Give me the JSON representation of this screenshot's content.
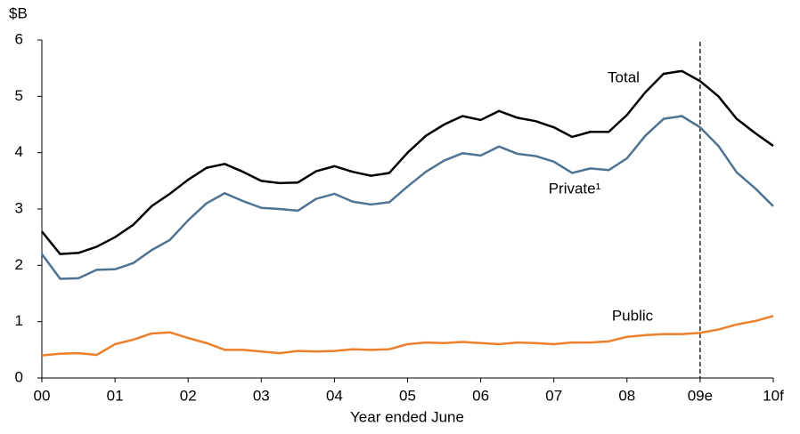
{
  "chart_data": {
    "type": "line",
    "y_unit_label": "$B",
    "x_axis_label": "Year ended June",
    "x": [
      0,
      0.25,
      0.5,
      0.75,
      1,
      1.25,
      1.5,
      1.75,
      2,
      2.25,
      2.5,
      2.75,
      3,
      3.25,
      3.5,
      3.75,
      4,
      4.25,
      4.5,
      4.75,
      5,
      5.25,
      5.5,
      5.75,
      6,
      6.25,
      6.5,
      6.75,
      7,
      7.25,
      7.5,
      7.75,
      8,
      8.25,
      8.5,
      8.75,
      9,
      9.25,
      9.5,
      9.75,
      10
    ],
    "series": [
      {
        "name": "Total",
        "color": "#000000",
        "values": [
          2.6,
          2.2,
          2.22,
          2.33,
          2.5,
          2.72,
          3.05,
          3.27,
          3.52,
          3.73,
          3.8,
          3.66,
          3.5,
          3.46,
          3.47,
          3.67,
          3.76,
          3.66,
          3.59,
          3.64,
          4.0,
          4.3,
          4.5,
          4.65,
          4.58,
          4.74,
          4.62,
          4.56,
          4.45,
          4.28,
          4.37,
          4.37,
          4.67,
          5.07,
          5.4,
          5.45,
          5.27,
          5.0,
          4.6,
          4.35,
          4.12
        ]
      },
      {
        "name": "Private¹",
        "color": "#4e7393",
        "values": [
          2.2,
          1.76,
          1.77,
          1.92,
          1.93,
          2.04,
          2.27,
          2.45,
          2.8,
          3.1,
          3.28,
          3.14,
          3.02,
          3.0,
          2.97,
          3.18,
          3.27,
          3.13,
          3.08,
          3.12,
          3.4,
          3.66,
          3.86,
          3.99,
          3.95,
          4.11,
          3.98,
          3.94,
          3.84,
          3.64,
          3.72,
          3.69,
          3.9,
          4.3,
          4.6,
          4.65,
          4.45,
          4.12,
          3.65,
          3.37,
          3.05
        ]
      },
      {
        "name": "Public",
        "color": "#ec7f2c",
        "values": [
          0.4,
          0.43,
          0.44,
          0.41,
          0.6,
          0.68,
          0.79,
          0.81,
          0.71,
          0.62,
          0.5,
          0.5,
          0.47,
          0.44,
          0.48,
          0.47,
          0.48,
          0.51,
          0.5,
          0.51,
          0.6,
          0.63,
          0.62,
          0.64,
          0.62,
          0.6,
          0.63,
          0.62,
          0.6,
          0.63,
          0.63,
          0.65,
          0.73,
          0.76,
          0.78,
          0.78,
          0.8,
          0.86,
          0.95,
          1.01,
          1.1
        ]
      }
    ],
    "forecast_line_x": 9,
    "xlim": [
      0,
      10
    ],
    "xticks": [
      {
        "value": 0,
        "label": "00"
      },
      {
        "value": 1,
        "label": "01"
      },
      {
        "value": 2,
        "label": "02"
      },
      {
        "value": 3,
        "label": "03"
      },
      {
        "value": 4,
        "label": "04"
      },
      {
        "value": 5,
        "label": "05"
      },
      {
        "value": 6,
        "label": "06"
      },
      {
        "value": 7,
        "label": "07"
      },
      {
        "value": 8,
        "label": "08"
      },
      {
        "value": 9,
        "label": "09e"
      },
      {
        "value": 10,
        "label": "10f"
      }
    ],
    "ylim": [
      0,
      6
    ],
    "yticks": [
      0,
      1,
      2,
      3,
      4,
      5,
      6
    ]
  }
}
